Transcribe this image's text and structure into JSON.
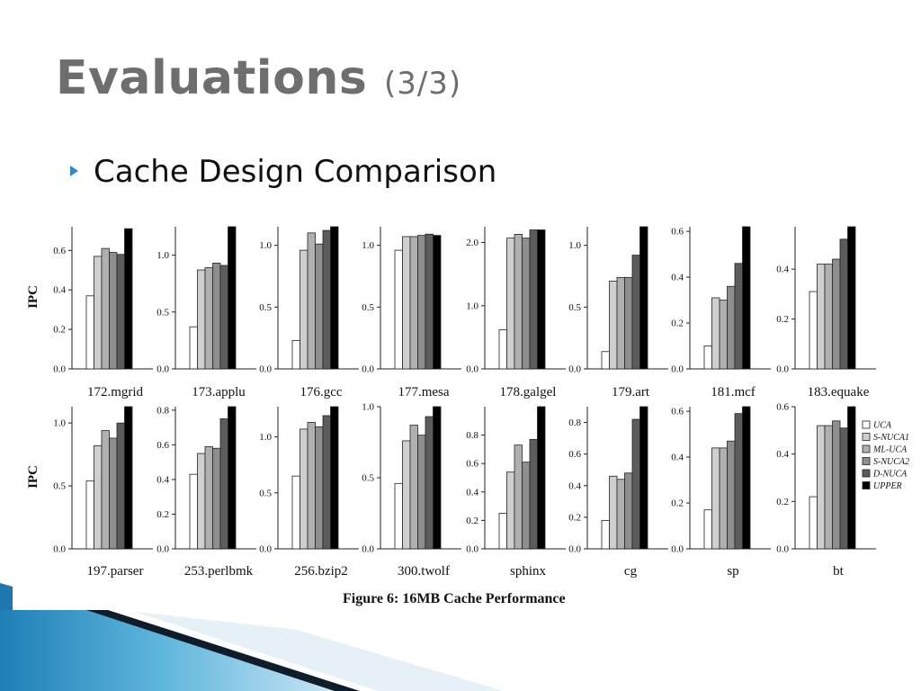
{
  "slide": {
    "title": "Evaluations",
    "title_suffix": "(3/3)",
    "bullet": "Cache Design Comparison",
    "caption": "Figure 6: 16MB Cache Performance",
    "bullet_icon": "triangle-bullet-icon"
  },
  "chart_data": {
    "type": "bar",
    "title": "Figure 6: 16MB Cache Performance",
    "ylabel": "IPC",
    "series_names": [
      "UCA",
      "S-NUCA1",
      "ML-UCA",
      "S-NUCA2",
      "D-NUCA",
      "UPPER"
    ],
    "series_colors": [
      "#ffffff",
      "#cfcfcf",
      "#b0b0b0",
      "#8e8e8e",
      "#5c5c5c",
      "#000000"
    ],
    "legend_position": "right of last panel",
    "grid": false,
    "panels": [
      {
        "name": "172.mgrid",
        "ylim": [
          0,
          0.72
        ],
        "ticks": [
          "0.0",
          "0.2",
          "0.4",
          "0.6"
        ],
        "tick_values": [
          0,
          0.2,
          0.4,
          0.6
        ],
        "values": [
          0.37,
          0.57,
          0.61,
          0.59,
          0.58,
          0.71
        ]
      },
      {
        "name": "173.applu",
        "ylim": [
          0,
          1.25
        ],
        "ticks": [
          "0.0",
          "0.5",
          "1.0"
        ],
        "tick_values": [
          0,
          0.5,
          1.0
        ],
        "values": [
          0.37,
          0.87,
          0.89,
          0.93,
          0.91,
          1.25
        ]
      },
      {
        "name": "176.gcc",
        "ylim": [
          0,
          1.15
        ],
        "ticks": [
          "0.0",
          "0.5",
          "1.0"
        ],
        "tick_values": [
          0,
          0.5,
          1.0
        ],
        "values": [
          0.23,
          0.96,
          1.1,
          1.01,
          1.12,
          1.15
        ]
      },
      {
        "name": "177.mesa",
        "ylim": [
          0,
          1.15
        ],
        "ticks": [
          "0.0",
          "0.5",
          "1.0"
        ],
        "tick_values": [
          0,
          0.5,
          1.0
        ],
        "values": [
          0.96,
          1.07,
          1.07,
          1.08,
          1.09,
          1.08
        ]
      },
      {
        "name": "178.galgel",
        "ylim": [
          0,
          2.25
        ],
        "ticks": [
          "0.0",
          "1.0",
          "2.0"
        ],
        "tick_values": [
          0,
          1.0,
          2.0
        ],
        "values": [
          0.62,
          2.07,
          2.13,
          2.07,
          2.2,
          2.2
        ]
      },
      {
        "name": "179.art",
        "ylim": [
          0,
          1.15
        ],
        "ticks": [
          "0.0",
          "0.5",
          "1.0"
        ],
        "tick_values": [
          0,
          0.5,
          1.0
        ],
        "values": [
          0.14,
          0.71,
          0.74,
          0.74,
          0.92,
          1.15
        ]
      },
      {
        "name": "181.mcf",
        "ylim": [
          0,
          0.62
        ],
        "ticks": [
          "0.0",
          "0.2",
          "0.4",
          "0.6"
        ],
        "tick_values": [
          0,
          0.2,
          0.4,
          0.6
        ],
        "values": [
          0.1,
          0.31,
          0.3,
          0.36,
          0.46,
          0.62
        ]
      },
      {
        "name": "183.equake",
        "ylim": [
          0,
          0.57
        ],
        "ticks": [
          "0.0",
          "0.2",
          "0.4"
        ],
        "tick_values": [
          0,
          0.2,
          0.4
        ],
        "values": [
          0.31,
          0.42,
          0.42,
          0.44,
          0.52,
          0.57
        ]
      },
      {
        "name": "197.parser",
        "ylim": [
          0,
          1.13
        ],
        "ticks": [
          "0.0",
          "0.5",
          "1.0"
        ],
        "tick_values": [
          0,
          0.5,
          1.0
        ],
        "values": [
          0.54,
          0.82,
          0.94,
          0.88,
          1.0,
          1.13
        ]
      },
      {
        "name": "253.perlbmk",
        "ylim": [
          0,
          0.82
        ],
        "ticks": [
          "0.0",
          "0.2",
          "0.4",
          "0.6",
          "0.8"
        ],
        "tick_values": [
          0,
          0.2,
          0.4,
          0.6,
          0.8
        ],
        "values": [
          0.43,
          0.55,
          0.59,
          0.58,
          0.75,
          0.82
        ]
      },
      {
        "name": "256.bzip2",
        "ylim": [
          0,
          1.27
        ],
        "ticks": [
          "0.0",
          "0.5",
          "1.0"
        ],
        "tick_values": [
          0,
          0.5,
          1.0
        ],
        "values": [
          0.65,
          1.07,
          1.13,
          1.09,
          1.19,
          1.27
        ]
      },
      {
        "name": "300.twolf",
        "ylim": [
          0,
          1.0
        ],
        "ticks": [
          "0.0",
          "0.5",
          "1.0"
        ],
        "tick_values": [
          0,
          0.5,
          1.0
        ],
        "values": [
          0.46,
          0.76,
          0.87,
          0.8,
          0.93,
          1.0
        ]
      },
      {
        "name": "sphinx",
        "ylim": [
          0,
          1.0
        ],
        "ticks": [
          "0.0",
          "0.2",
          "0.4",
          "0.6",
          "0.8"
        ],
        "tick_values": [
          0,
          0.2,
          0.4,
          0.6,
          0.8
        ],
        "values": [
          0.25,
          0.54,
          0.73,
          0.61,
          0.77,
          1.0
        ]
      },
      {
        "name": "cg",
        "ylim": [
          0,
          0.9
        ],
        "ticks": [
          "0.0",
          "0.2",
          "0.4",
          "0.6",
          "0.8"
        ],
        "tick_values": [
          0,
          0.2,
          0.4,
          0.6,
          0.8
        ],
        "values": [
          0.18,
          0.46,
          0.44,
          0.48,
          0.82,
          0.9
        ]
      },
      {
        "name": "sp",
        "ylim": [
          0,
          0.62
        ],
        "ticks": [
          "0.0",
          "0.2",
          "0.4",
          "0.6"
        ],
        "tick_values": [
          0,
          0.2,
          0.4,
          0.6
        ],
        "values": [
          0.17,
          0.44,
          0.44,
          0.47,
          0.59,
          0.62
        ]
      },
      {
        "name": "bt",
        "ylim": [
          0,
          0.6
        ],
        "ticks": [
          "0.0",
          "0.2",
          "0.4",
          "0.6"
        ],
        "tick_values": [
          0,
          0.2,
          0.4,
          0.6
        ],
        "values": [
          0.22,
          0.52,
          0.52,
          0.54,
          0.51,
          0.6
        ]
      }
    ]
  }
}
